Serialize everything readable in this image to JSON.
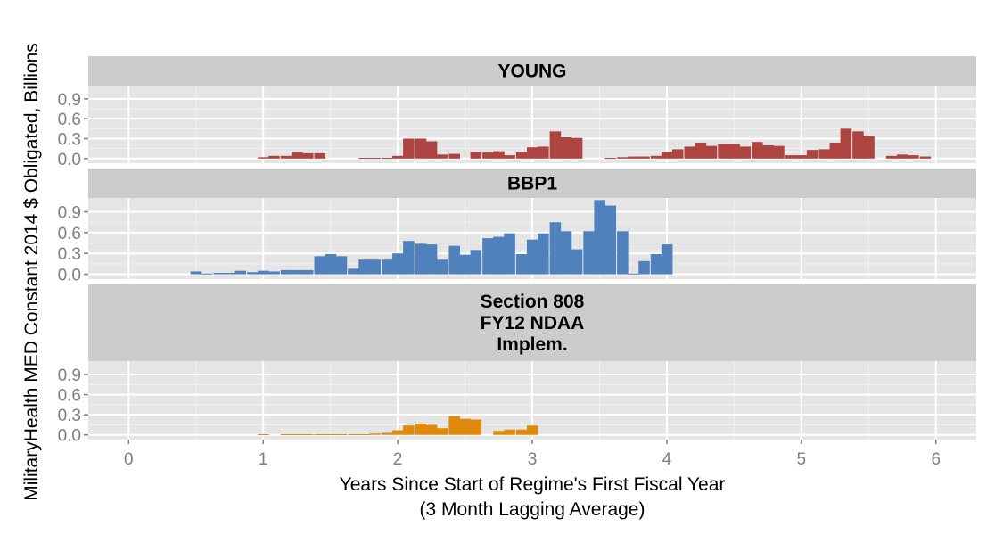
{
  "chart_data": {
    "type": "bar",
    "xlabel": [
      "Years Since Start of Regime's First Fiscal Year",
      "(3 Month Lagging Average)"
    ],
    "ylabel": "MilitaryHealth MED Constant 2014 $ Obligated, Billions",
    "xlim": [
      -0.3,
      6.3
    ],
    "x_ticks": [
      0,
      1,
      2,
      3,
      4,
      5,
      6
    ],
    "ylim": [
      -0.07,
      1.1
    ],
    "y_ticks": [
      0.0,
      0.3,
      0.6,
      0.9
    ],
    "bin_width": 0.0833,
    "grid": true,
    "legend": "none",
    "panels": [
      {
        "title": [
          "YOUNG"
        ],
        "color": "#ad4441",
        "bars": [
          [
            0.96,
            0.02
          ],
          [
            1.04,
            0.04
          ],
          [
            1.13,
            0.04
          ],
          [
            1.21,
            0.09
          ],
          [
            1.29,
            0.08
          ],
          [
            1.38,
            0.08
          ],
          [
            1.71,
            0.01
          ],
          [
            1.79,
            0.01
          ],
          [
            1.88,
            0.01
          ],
          [
            1.96,
            0.04
          ],
          [
            2.04,
            0.3
          ],
          [
            2.13,
            0.3
          ],
          [
            2.21,
            0.26
          ],
          [
            2.29,
            0.06
          ],
          [
            2.38,
            0.07
          ],
          [
            2.54,
            0.1
          ],
          [
            2.63,
            0.09
          ],
          [
            2.71,
            0.11
          ],
          [
            2.79,
            0.05
          ],
          [
            2.88,
            0.1
          ],
          [
            2.96,
            0.17
          ],
          [
            3.04,
            0.18
          ],
          [
            3.13,
            0.41
          ],
          [
            3.21,
            0.32
          ],
          [
            3.29,
            0.31
          ],
          [
            3.54,
            0.01
          ],
          [
            3.63,
            0.02
          ],
          [
            3.71,
            0.03
          ],
          [
            3.79,
            0.03
          ],
          [
            3.88,
            0.04
          ],
          [
            3.96,
            0.1
          ],
          [
            4.04,
            0.14
          ],
          [
            4.13,
            0.18
          ],
          [
            4.21,
            0.24
          ],
          [
            4.29,
            0.19
          ],
          [
            4.38,
            0.22
          ],
          [
            4.46,
            0.22
          ],
          [
            4.54,
            0.18
          ],
          [
            4.63,
            0.25
          ],
          [
            4.71,
            0.2
          ],
          [
            4.79,
            0.19
          ],
          [
            4.88,
            0.05
          ],
          [
            4.96,
            0.05
          ],
          [
            5.04,
            0.13
          ],
          [
            5.13,
            0.14
          ],
          [
            5.21,
            0.24
          ],
          [
            5.29,
            0.45
          ],
          [
            5.38,
            0.41
          ],
          [
            5.46,
            0.34
          ],
          [
            5.63,
            0.04
          ],
          [
            5.71,
            0.06
          ],
          [
            5.79,
            0.05
          ],
          [
            5.88,
            0.03
          ]
        ]
      },
      {
        "title": [
          "BBP1"
        ],
        "color": "#4f81bd",
        "bars": [
          [
            0.46,
            0.04
          ],
          [
            0.54,
            0.01
          ],
          [
            0.63,
            0.02
          ],
          [
            0.71,
            0.02
          ],
          [
            0.79,
            0.05
          ],
          [
            0.88,
            0.03
          ],
          [
            0.96,
            0.05
          ],
          [
            1.04,
            0.04
          ],
          [
            1.13,
            0.06
          ],
          [
            1.21,
            0.06
          ],
          [
            1.29,
            0.06
          ],
          [
            1.38,
            0.26
          ],
          [
            1.46,
            0.29
          ],
          [
            1.54,
            0.26
          ],
          [
            1.63,
            0.08
          ],
          [
            1.71,
            0.21
          ],
          [
            1.79,
            0.21
          ],
          [
            1.88,
            0.21
          ],
          [
            1.96,
            0.3
          ],
          [
            2.04,
            0.48
          ],
          [
            2.13,
            0.44
          ],
          [
            2.21,
            0.43
          ],
          [
            2.29,
            0.21
          ],
          [
            2.38,
            0.41
          ],
          [
            2.46,
            0.28
          ],
          [
            2.54,
            0.35
          ],
          [
            2.63,
            0.52
          ],
          [
            2.71,
            0.54
          ],
          [
            2.79,
            0.59
          ],
          [
            2.88,
            0.29
          ],
          [
            2.96,
            0.5
          ],
          [
            3.04,
            0.59
          ],
          [
            3.13,
            0.75
          ],
          [
            3.21,
            0.62
          ],
          [
            3.29,
            0.36
          ],
          [
            3.38,
            0.62
          ],
          [
            3.46,
            1.07
          ],
          [
            3.54,
            0.99
          ],
          [
            3.63,
            0.62
          ],
          [
            3.71,
            0.01
          ],
          [
            3.79,
            0.19
          ],
          [
            3.88,
            0.29
          ],
          [
            3.96,
            0.43
          ]
        ]
      },
      {
        "title": [
          "Section 808",
          "FY12 NDAA",
          "Implem."
        ],
        "color": "#e08a0b",
        "bars": [
          [
            0.96,
            0.01
          ],
          [
            1.13,
            0.01
          ],
          [
            1.21,
            0.01
          ],
          [
            1.29,
            0.01
          ],
          [
            1.38,
            0.01
          ],
          [
            1.46,
            0.01
          ],
          [
            1.54,
            0.01
          ],
          [
            1.63,
            0.01
          ],
          [
            1.71,
            0.01
          ],
          [
            1.79,
            0.02
          ],
          [
            1.88,
            0.03
          ],
          [
            1.96,
            0.07
          ],
          [
            2.04,
            0.14
          ],
          [
            2.13,
            0.17
          ],
          [
            2.21,
            0.15
          ],
          [
            2.29,
            0.1
          ],
          [
            2.38,
            0.28
          ],
          [
            2.46,
            0.24
          ],
          [
            2.54,
            0.23
          ],
          [
            2.71,
            0.06
          ],
          [
            2.79,
            0.08
          ],
          [
            2.88,
            0.08
          ],
          [
            2.96,
            0.14
          ]
        ]
      }
    ]
  }
}
